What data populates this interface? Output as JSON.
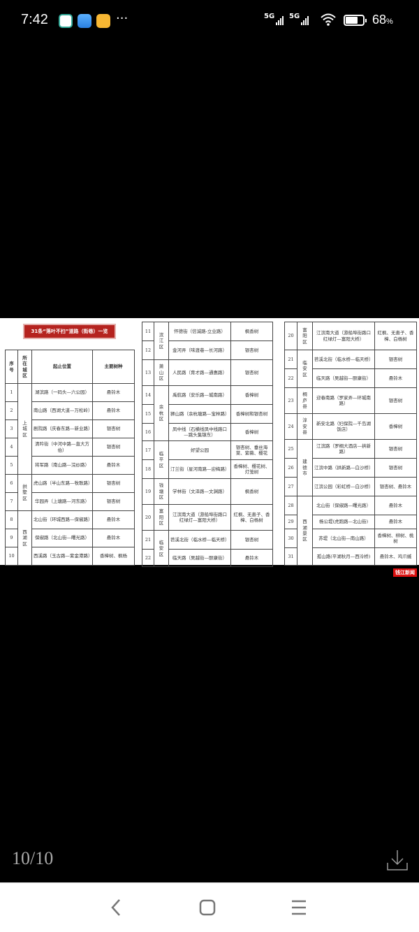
{
  "status_bar": {
    "time": "7:42",
    "network1": "5G",
    "network2": "5G",
    "battery": "68",
    "battery_unit": "%",
    "battery_level_percent": 68
  },
  "image": {
    "title": "31条“落叶不扫”道路（街巷）一览",
    "headers": [
      "序号",
      "所在城区",
      "起止位置",
      "主要树种"
    ],
    "watermark": "钱江新闻",
    "panels": [
      {
        "rows": [
          {
            "no": "1",
            "district": "上城区",
            "span": 5,
            "location": "湖滨路（一码头—六公园）",
            "species": "悬铃木"
          },
          {
            "no": "2",
            "location": "南山路（西湖大道—万松岭）",
            "species": "悬铃木"
          },
          {
            "no": "3",
            "location": "剧院路（庆春东路—新业路）",
            "species": "银杏树"
          },
          {
            "no": "4",
            "location": "清吟街（中河中路—直大方伯）",
            "species": "银杏树"
          },
          {
            "no": "5",
            "location": "将军路（南山路—浣纱路）",
            "species": "悬铃木"
          },
          {
            "no": "6",
            "district": "拱墅区",
            "span": 2,
            "location": "虎山路（半山东路—牧歌路）",
            "species": "银杏树"
          },
          {
            "no": "7",
            "location": "华园弄（上塘路—河东路）",
            "species": "银杏树"
          },
          {
            "no": "8",
            "district": "西湖区",
            "span": 3,
            "location": "北山街（环城西路—保俶路）",
            "species": "悬铃木"
          },
          {
            "no": "9",
            "location": "保俶路（北山街—曙光路）",
            "species": "悬铃木"
          },
          {
            "no": "10",
            "location": "西溪路（玉古路—紫金港路）",
            "species": "香樟树、枫杨"
          }
        ]
      },
      {
        "rows": [
          {
            "no": "11",
            "district": "滨江区",
            "span": 2,
            "location": "怀德街（信诚路-立业路）",
            "species": "枫香树"
          },
          {
            "no": "12",
            "location": "金河弄（味渡巷—长河路）",
            "species": "银杏树"
          },
          {
            "no": "13",
            "district": "萧山区",
            "span": 1,
            "location": "人民路（育才路—通惠路）",
            "species": "银杏树"
          },
          {
            "no": "14",
            "district": "余杭区",
            "span": 3,
            "location": "禹航路（安乐路—城南路）",
            "species": "香樟树"
          },
          {
            "no": "15",
            "location": "狮山路（余杭塘路—宝林路）",
            "species": "香樟树和银杏树"
          },
          {
            "no": "16",
            "location": "凤中线（石横线凤中线路口—跳头集镇东）",
            "species": "香樟树"
          },
          {
            "no": "17",
            "district": "临平区",
            "span": 2,
            "location": "好望公园",
            "species": "银杏树、垂丝海棠、紫薇、樱花"
          },
          {
            "no": "18",
            "location": "汀兰街（星河南路—迎梅路）",
            "species": "香樟树、樱花树、灯笼树"
          },
          {
            "no": "19",
            "district": "钱塘区",
            "span": 1,
            "location": "学林街（文泽路—文渊路）",
            "species": "枫香树"
          },
          {
            "no": "20",
            "district": "富阳区",
            "span": 1,
            "location": "江滨南大道（游船埠街路口红绿灯—富阳大桥）",
            "species": "红枫、无患子、香樟、白杨树"
          },
          {
            "no": "21",
            "district": "临安区",
            "span": 2,
            "location": "苕溪北街（临水桥—临天桥）",
            "species": "银杏树"
          },
          {
            "no": "22",
            "location": "临天路（吴越街—颐康街）",
            "species": "悬铃木"
          }
        ]
      },
      {
        "rows": [
          {
            "no": "20",
            "district": "富阳区",
            "span": 1,
            "location": "江滨南大道（游船埠街路口红绿灯—富阳大桥）",
            "species": "红枫、无患子、香樟、白杨树"
          },
          {
            "no": "21",
            "district": "临安区",
            "span": 2,
            "location": "苕溪北街（临水桥—临天桥）",
            "species": "银杏树"
          },
          {
            "no": "22",
            "location": "临天路（吴越街—颐康街）",
            "species": "悬铃木"
          },
          {
            "no": "23",
            "district": "桐庐县",
            "span": 1,
            "location": "迎春南路（罗家弄—环城南路）",
            "species": "银杏树"
          },
          {
            "no": "24",
            "district": "淳安县",
            "span": 1,
            "location": "新安北路（妇保院—千岛湖饭店）",
            "species": "香樟树"
          },
          {
            "no": "25",
            "district": "建德市",
            "span": 3,
            "location": "江滨路（罗桐大酒店—拱新路）",
            "species": "银杏树"
          },
          {
            "no": "26",
            "location": "江滨中路（拱新路—白沙桥）",
            "species": "银杏树"
          },
          {
            "no": "27",
            "location": "江滨公园（彩虹桥—白沙桥）",
            "species": "银杏树、悬铃木"
          },
          {
            "no": "28",
            "district": "西湖景区",
            "span": 4,
            "location": "北山街（保俶路—曙光路）",
            "species": "悬铃木"
          },
          {
            "no": "29",
            "location": "杨公堤(虎跑路—北山街)",
            "species": "悬铃木"
          },
          {
            "no": "30",
            "location": "苏堤（北山街—南山路）",
            "species": "香樟树、柳树、桃树"
          },
          {
            "no": "31",
            "location": "孤山路(平湖秋月—西泠桥)",
            "species": "悬铃木、鸡爪槭"
          }
        ]
      }
    ]
  },
  "viewer": {
    "page_counter": "10/10",
    "download_icon": "download-icon"
  },
  "nav": {
    "back_icon": "back-icon",
    "home_icon": "home-icon",
    "menu_icon": "menu-icon"
  }
}
